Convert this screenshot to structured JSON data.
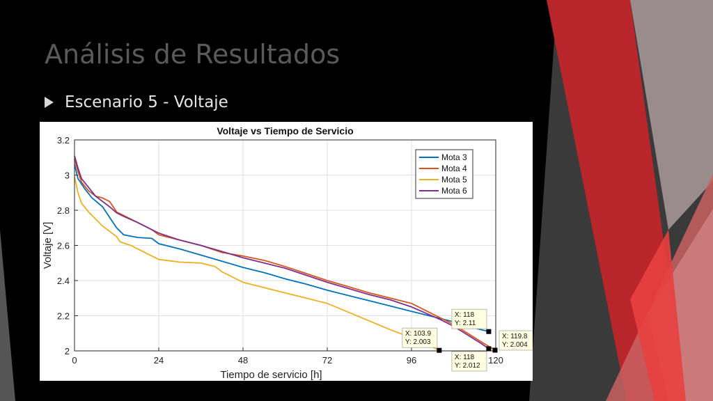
{
  "slide": {
    "title": "Análisis de Resultados",
    "bullet": "Escenario 5 - Voltaje"
  },
  "colors": {
    "background": "#000000",
    "accent_red": "#c0282d",
    "accent_gray": "#8c8c8c"
  },
  "chart_data": {
    "type": "line",
    "title": "Voltaje vs Tiempo de Servicio",
    "xlabel": "Tiempo de servicio [h]",
    "ylabel": "Voltaje [V]",
    "xlim": [
      0,
      120
    ],
    "ylim": [
      2,
      3.2
    ],
    "xticks": [
      0,
      24,
      48,
      72,
      96,
      120
    ],
    "yticks": [
      2,
      2.2,
      2.4,
      2.6,
      2.8,
      3,
      3.2
    ],
    "grid": true,
    "legend_position": "top-right",
    "series": [
      {
        "name": "Mota 3",
        "color": "#0072bd",
        "x": [
          0,
          1,
          3,
          5,
          8,
          10,
          12,
          14,
          18,
          22,
          24,
          30,
          36,
          42,
          48,
          54,
          60,
          66,
          72,
          78,
          84,
          90,
          96,
          102,
          108,
          112,
          116,
          118
        ],
        "y": [
          3.06,
          2.98,
          2.92,
          2.87,
          2.82,
          2.76,
          2.7,
          2.66,
          2.645,
          2.64,
          2.61,
          2.58,
          2.545,
          2.51,
          2.475,
          2.445,
          2.41,
          2.38,
          2.345,
          2.315,
          2.285,
          2.255,
          2.225,
          2.195,
          2.165,
          2.14,
          2.12,
          2.11
        ]
      },
      {
        "name": "Mota 4",
        "color": "#d95319",
        "x": [
          0,
          1,
          2,
          4,
          6,
          8,
          10,
          11,
          12,
          14,
          18,
          22,
          24,
          30,
          36,
          42,
          48,
          54,
          60,
          66,
          72,
          78,
          84,
          90,
          96,
          100,
          104,
          108,
          112,
          116,
          119.8
        ],
        "y": [
          3.09,
          3.02,
          2.96,
          2.91,
          2.88,
          2.87,
          2.85,
          2.82,
          2.79,
          2.77,
          2.73,
          2.69,
          2.66,
          2.63,
          2.6,
          2.56,
          2.54,
          2.515,
          2.48,
          2.44,
          2.4,
          2.365,
          2.33,
          2.3,
          2.27,
          2.23,
          2.19,
          2.15,
          2.1,
          2.05,
          2.004
        ]
      },
      {
        "name": "Mota 5",
        "color": "#edb120",
        "x": [
          0,
          1,
          2,
          4,
          6,
          8,
          10,
          12,
          13,
          16,
          20,
          24,
          30,
          36,
          40,
          42,
          48,
          54,
          60,
          66,
          72,
          78,
          84,
          90,
          96,
          100,
          103.9
        ],
        "y": [
          2.99,
          2.9,
          2.84,
          2.79,
          2.75,
          2.71,
          2.68,
          2.65,
          2.62,
          2.6,
          2.56,
          2.52,
          2.505,
          2.5,
          2.48,
          2.45,
          2.39,
          2.36,
          2.33,
          2.3,
          2.27,
          2.22,
          2.17,
          2.12,
          2.075,
          2.04,
          2.003
        ]
      },
      {
        "name": "Mota 6",
        "color": "#7e2f8e",
        "x": [
          0,
          1,
          2,
          4,
          6,
          8,
          10,
          12,
          14,
          18,
          22,
          24,
          30,
          36,
          42,
          48,
          54,
          60,
          66,
          72,
          78,
          84,
          90,
          96,
          100,
          104,
          108,
          112,
          116,
          118
        ],
        "y": [
          3.11,
          3.04,
          2.98,
          2.93,
          2.88,
          2.85,
          2.82,
          2.785,
          2.765,
          2.73,
          2.69,
          2.67,
          2.63,
          2.6,
          2.565,
          2.53,
          2.5,
          2.47,
          2.43,
          2.39,
          2.355,
          2.32,
          2.29,
          2.25,
          2.215,
          2.18,
          2.14,
          2.09,
          2.04,
          2.012
        ]
      }
    ],
    "datatips": [
      {
        "x": 118,
        "y": 2.11,
        "line1": "X: 118",
        "line2": "Y: 2.11",
        "side": "above-left"
      },
      {
        "x": 103.9,
        "y": 2.003,
        "line1": "X: 103.9",
        "line2": "Y: 2.003",
        "side": "above-left"
      },
      {
        "x": 118,
        "y": 2.012,
        "line1": "X: 118",
        "line2": "Y: 2.012",
        "side": "below-left"
      },
      {
        "x": 119.8,
        "y": 2.004,
        "line1": "X: 119.8",
        "line2": "Y: 2.004",
        "side": "right"
      }
    ]
  }
}
